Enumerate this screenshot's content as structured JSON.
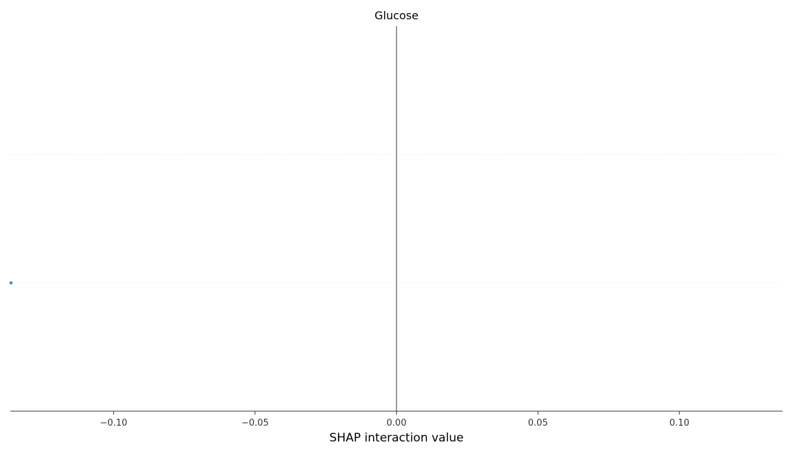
{
  "chart_data": {
    "type": "scatter",
    "title": "Glucose",
    "xlabel": "SHAP interaction value",
    "ylabel": "",
    "xlim": [
      -0.1365,
      0.1365
    ],
    "xticks": [
      {
        "value": -0.1,
        "label": "−0.10"
      },
      {
        "value": -0.05,
        "label": "−0.05"
      },
      {
        "value": 0.0,
        "label": "0.00"
      },
      {
        "value": 0.05,
        "label": "0.05"
      },
      {
        "value": 0.1,
        "label": "0.10"
      }
    ],
    "rows": 3,
    "zero_line": 0.0,
    "grid": "dotted horizontal row guides",
    "points": [
      {
        "x": -0.1365,
        "row": 2
      }
    ],
    "colors": {
      "point": "#1e88e5",
      "zero_line": "#999999",
      "axis": "#333333",
      "row_guide": "#e0e0e0"
    }
  }
}
